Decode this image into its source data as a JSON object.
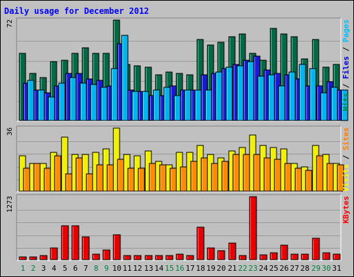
{
  "chart_data": {
    "type": "bar",
    "title": "Daily usage for December 2012",
    "x": [
      "1",
      "2",
      "3",
      "4",
      "5",
      "6",
      "7",
      "8",
      "9",
      "10",
      "11",
      "12",
      "13",
      "14",
      "15",
      "16",
      "17",
      "18",
      "19",
      "20",
      "21",
      "22",
      "23",
      "24",
      "25",
      "26",
      "27",
      "28",
      "29",
      "30",
      "31"
    ],
    "weekend_days": [
      1,
      2,
      8,
      9,
      15,
      16,
      22,
      23,
      29,
      30
    ],
    "panels": [
      {
        "id": "hits",
        "ymax": 72,
        "ymax_label": "72",
        "legend": [
          {
            "label": "Pages",
            "color": "#00c0ff"
          },
          {
            "label": "Files",
            "color": "#0000e0"
          },
          {
            "label": "Hits",
            "color": "#008040"
          }
        ],
        "series": [
          {
            "name": "Hits",
            "color": "#006a45",
            "values": [
              48,
              34,
              31,
              42,
              43,
              48,
              52,
              48,
              48,
              72,
              40,
              39,
              38,
              33,
              35,
              34,
              33,
              58,
              54,
              56,
              60,
              62,
              48,
              43,
              66,
              62,
              60,
              44,
              58,
              38,
              40
            ]
          },
          {
            "name": "Files",
            "color": "#1a1ad8",
            "values": [
              27,
              22,
              20,
              25,
              34,
              34,
              30,
              29,
              25,
              55,
              22,
              21,
              18,
              18,
              25,
              22,
              22,
              33,
              34,
              37,
              40,
              43,
              46,
              36,
              34,
              33,
              30,
              25,
              25,
              28,
              22
            ]
          },
          {
            "name": "Pages",
            "color": "#00b4f0",
            "values": [
              29,
              22,
              17,
              27,
              31,
              27,
              26,
              24,
              37,
              61,
              21,
              21,
              22,
              24,
              18,
              22,
              22,
              22,
              35,
              38,
              39,
              42,
              32,
              33,
              25,
              35,
              40,
              37,
              20,
              24,
              22
            ]
          }
        ]
      },
      {
        "id": "visits",
        "ymax": 36,
        "ymax_label": "36",
        "legend": [
          {
            "label": "Sites",
            "color": "#ff8000"
          },
          {
            "label": "Visits",
            "color": "#ffff00"
          }
        ],
        "series": [
          {
            "name": "Visits",
            "color": "#f0f000",
            "values": [
              20,
              16,
              16,
              22,
              31,
              21,
              21,
              22,
              24,
              36,
              21,
              20,
              23,
              17,
              15,
              22,
              22,
              26,
              21,
              19,
              23,
              25,
              32,
              26,
              25,
              24,
              16,
              14,
              26,
              21,
              16
            ]
          },
          {
            "name": "Sites",
            "color": "#ff8c00",
            "values": [
              13,
              16,
              13,
              20,
              10,
              19,
              10,
              15,
              15,
              18,
              13,
              13,
              16,
              15,
              13,
              14,
              17,
              19,
              16,
              17,
              21,
              21,
              21,
              19,
              18,
              16,
              13,
              12,
              20,
              16,
              15
            ]
          }
        ]
      },
      {
        "id": "kbytes",
        "ymax": 1273,
        "ymax_label": "1273",
        "legend": [
          {
            "label": "KBytes",
            "color": "#ff0000"
          }
        ],
        "series": [
          {
            "name": "KBytes",
            "color": "#e80000",
            "values": [
              62,
              62,
              86,
              234,
              688,
              682,
              460,
              106,
              195,
              498,
              86,
              80,
              86,
              80,
              78,
              106,
              86,
              651,
              237,
              182,
              329,
              89,
              1273,
              103,
              135,
              291,
              114,
              107,
              428,
              134,
              105
            ]
          }
        ]
      }
    ]
  }
}
